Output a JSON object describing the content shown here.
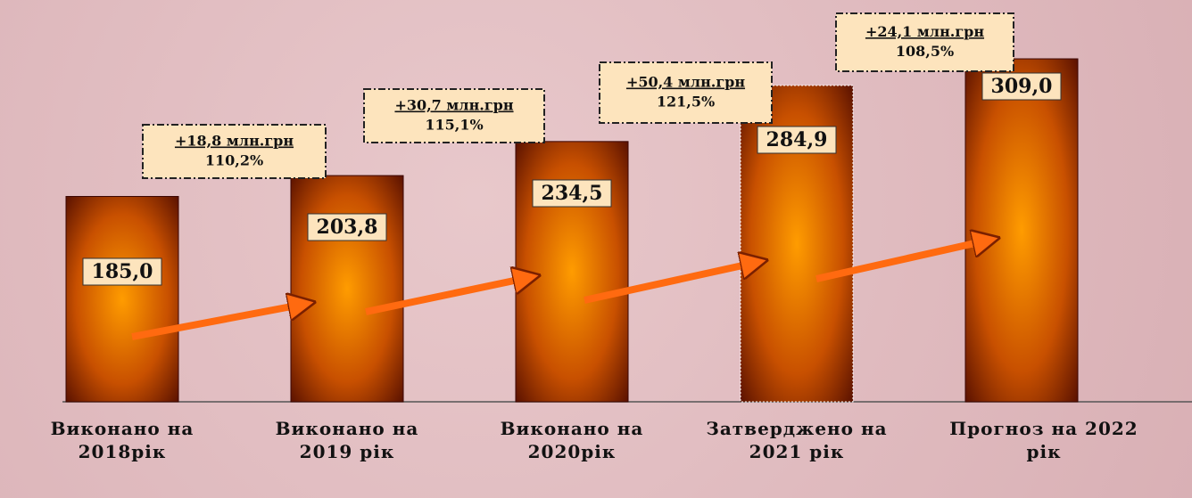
{
  "chart_data": {
    "type": "bar",
    "categories": [
      "Виконано на\n2018рік",
      "Виконано на\n2019 рік",
      "Виконано на\n2020рік",
      "Затверджено на\n2021 рік",
      "Прогноз на 2022\nрік"
    ],
    "values": [
      185.0,
      203.8,
      234.5,
      284.9,
      309.0
    ],
    "value_labels": [
      "185,0",
      "203,8",
      "234,5",
      "284,9",
      "309,0"
    ],
    "ylim": [
      0,
      362
    ],
    "annotations": [
      {
        "change": "+18,8 млн.грн",
        "percent": "110,2%"
      },
      {
        "change": "+30,7 млн.грн",
        "percent": "115,1%"
      },
      {
        "change": "+50,4 млн.грн",
        "percent": "121,5%"
      },
      {
        "change": "+24,1 млн.грн",
        "percent": "108,5%"
      }
    ]
  }
}
